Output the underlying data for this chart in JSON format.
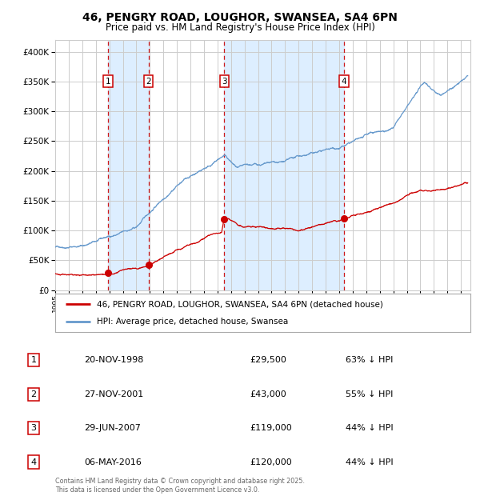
{
  "title": "46, PENGRY ROAD, LOUGHOR, SWANSEA, SA4 6PN",
  "subtitle": "Price paid vs. HM Land Registry's House Price Index (HPI)",
  "background_color": "#ffffff",
  "plot_bg_color": "#ffffff",
  "grid_color": "#cccccc",
  "hpi_color": "#6699cc",
  "price_color": "#cc0000",
  "shade_color": "#ddeeff",
  "transactions": [
    {
      "num": 1,
      "date_label": "20-NOV-1998",
      "date_year": 1998.9,
      "price": 29500,
      "pct": "63% ↓ HPI"
    },
    {
      "num": 2,
      "date_label": "27-NOV-2001",
      "date_year": 2001.9,
      "price": 43000,
      "pct": "55% ↓ HPI"
    },
    {
      "num": 3,
      "date_label": "29-JUN-2007",
      "date_year": 2007.5,
      "price": 119000,
      "pct": "44% ↓ HPI"
    },
    {
      "num": 4,
      "date_label": "06-MAY-2016",
      "date_year": 2016.35,
      "price": 120000,
      "pct": "44% ↓ HPI"
    }
  ],
  "legend_property_label": "46, PENGRY ROAD, LOUGHOR, SWANSEA, SA4 6PN (detached house)",
  "legend_hpi_label": "HPI: Average price, detached house, Swansea",
  "footnote": "Contains HM Land Registry data © Crown copyright and database right 2025.\nThis data is licensed under the Open Government Licence v3.0.",
  "ylim": [
    0,
    420000
  ],
  "xlim_start": 1995.0,
  "xlim_end": 2025.7
}
